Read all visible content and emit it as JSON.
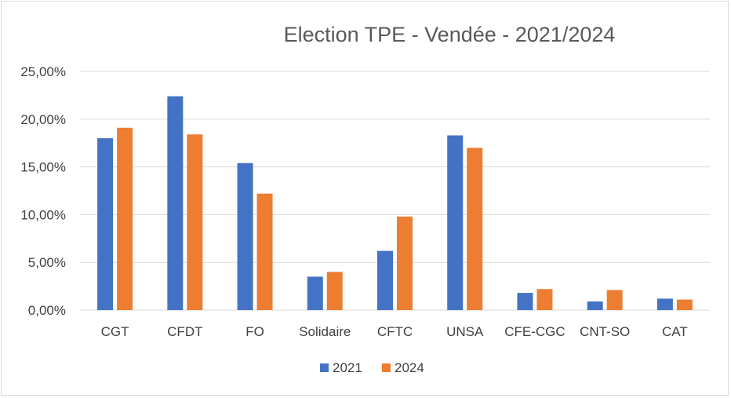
{
  "chart_data": {
    "type": "bar",
    "title": "Election TPE - Vendée - 2021/2024",
    "xlabel": "",
    "ylabel": "",
    "categories": [
      "CGT",
      "CFDT",
      "FO",
      "Solidaire",
      "CFTC",
      "UNSA",
      "CFE-CGC",
      "CNT-SO",
      "CAT"
    ],
    "series": [
      {
        "name": "2021",
        "color": "#4472c4",
        "values": [
          18.0,
          22.4,
          15.4,
          3.5,
          6.2,
          18.3,
          1.8,
          0.9,
          1.2
        ]
      },
      {
        "name": "2024",
        "color": "#ed7d31",
        "values": [
          19.1,
          18.4,
          12.2,
          4.0,
          9.8,
          17.0,
          2.2,
          2.1,
          1.1
        ]
      }
    ],
    "ylim": [
      0,
      25
    ],
    "yticks": [
      "0,00%",
      "5,00%",
      "10,00%",
      "15,00%",
      "20,00%",
      "25,00%"
    ],
    "grid": true,
    "legend": "bottom"
  }
}
